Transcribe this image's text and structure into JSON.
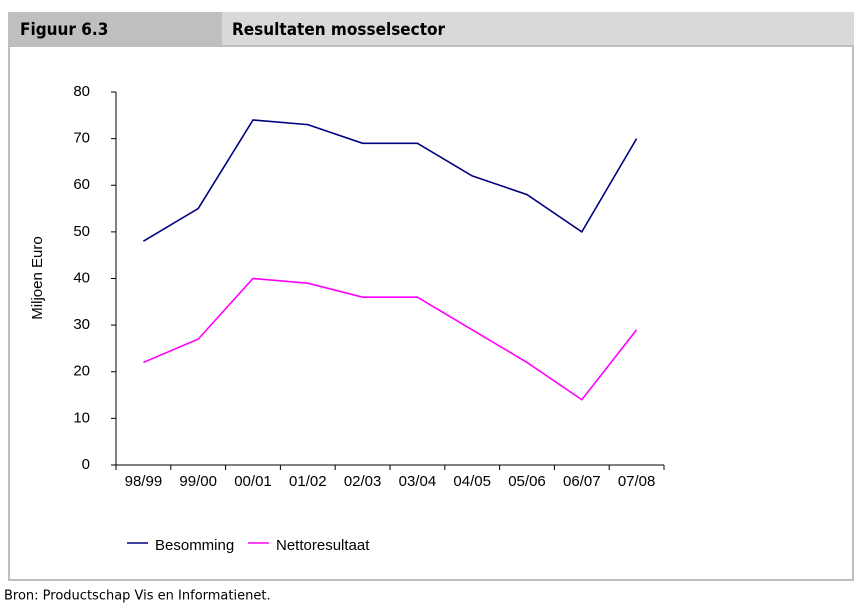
{
  "header": {
    "label": "Figuur 6.3",
    "title": "Resultaten mosselsector"
  },
  "source": "Bron: Productschap Vis en Informatienet.",
  "chart_data": {
    "type": "line",
    "ylabel": "Miljoen Euro",
    "categories": [
      "98/99",
      "99/00",
      "00/01",
      "01/02",
      "02/03",
      "03/04",
      "04/05",
      "05/06",
      "06/07",
      "07/08"
    ],
    "series": [
      {
        "name": "Besomming",
        "color": "#000080",
        "values": [
          48,
          55,
          74,
          73,
          69,
          69,
          62,
          58,
          50,
          70
        ]
      },
      {
        "name": "Nettoresultaat",
        "color": "#ff00ff",
        "values": [
          22,
          27,
          40,
          39,
          36,
          36,
          29,
          22,
          14,
          29
        ]
      }
    ],
    "ylim": [
      0,
      80
    ],
    "yticks": [
      0,
      10,
      20,
      30,
      40,
      50,
      60,
      70,
      80
    ],
    "grid": false,
    "legend": "bottom"
  }
}
